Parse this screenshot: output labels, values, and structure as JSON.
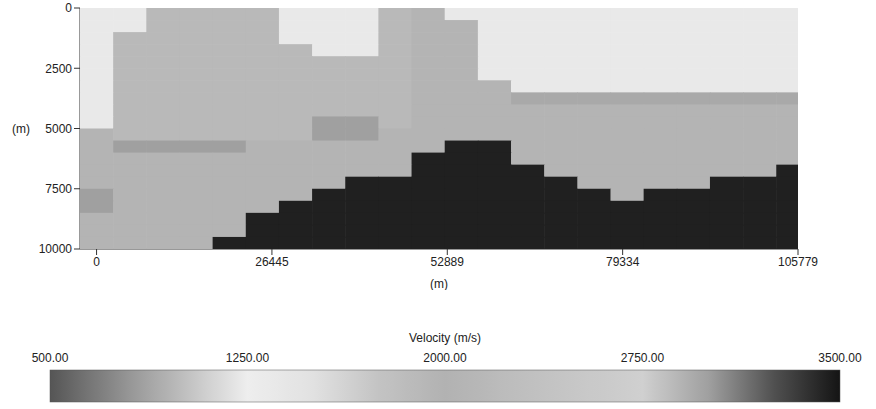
{
  "chart_data": {
    "type": "heatmap",
    "x_label": "(m)",
    "y_label": "(m)",
    "xlim": [
      -2500,
      105779
    ],
    "xticks": [
      0,
      26445,
      52889,
      79334,
      105779
    ],
    "ylim": [
      0,
      10000
    ],
    "yticks": [
      0,
      2500,
      5000,
      7500,
      10000
    ],
    "x": [
      0,
      5000,
      10000,
      15000,
      20000,
      25000,
      30000,
      35000,
      40000,
      45000,
      50000,
      55000,
      60000,
      65000,
      70000,
      75000,
      80000,
      85000,
      90000,
      95000,
      100000,
      105000
    ],
    "y": [
      250,
      750,
      1250,
      1750,
      2250,
      2750,
      3250,
      3750,
      4250,
      4750,
      5250,
      5750,
      6250,
      6750,
      7250,
      7750,
      8250,
      8750,
      9250,
      9750
    ],
    "cells": [
      [
        1350,
        1350,
        1900,
        1900,
        1900,
        1900,
        1350,
        1350,
        1350,
        1900,
        2050,
        1350,
        1350,
        1350,
        1350,
        1350,
        1350,
        1350,
        1350,
        1350,
        1350,
        1350
      ],
      [
        1350,
        1350,
        1900,
        1900,
        1900,
        1900,
        1350,
        1350,
        1350,
        1900,
        2050,
        2050,
        1350,
        1350,
        1350,
        1350,
        1350,
        1350,
        1350,
        1350,
        1350,
        1350
      ],
      [
        1350,
        1900,
        1900,
        1900,
        1900,
        1900,
        1350,
        1350,
        1350,
        1900,
        2050,
        2050,
        1350,
        1350,
        1350,
        1350,
        1350,
        1350,
        1350,
        1350,
        1350,
        1350
      ],
      [
        1350,
        1900,
        1900,
        1900,
        1900,
        1900,
        1900,
        1350,
        1350,
        1900,
        2050,
        2050,
        1350,
        1350,
        1350,
        1350,
        1350,
        1350,
        1350,
        1350,
        1350,
        1350
      ],
      [
        1350,
        1900,
        1900,
        1900,
        1900,
        1900,
        1900,
        1900,
        1900,
        1900,
        2050,
        2050,
        1350,
        1350,
        1350,
        1350,
        1350,
        1350,
        1350,
        1350,
        1350,
        1350
      ],
      [
        1350,
        1900,
        1900,
        1900,
        1900,
        1900,
        1900,
        1900,
        1900,
        1900,
        2050,
        2050,
        1350,
        1350,
        1350,
        1350,
        1350,
        1350,
        1350,
        1350,
        1350,
        1350
      ],
      [
        1350,
        1900,
        1900,
        1900,
        1900,
        1900,
        1900,
        1900,
        1900,
        1900,
        2050,
        2050,
        2050,
        1350,
        1350,
        1350,
        1350,
        1350,
        1350,
        1350,
        1350,
        1350
      ],
      [
        1350,
        1900,
        1900,
        1900,
        1900,
        1900,
        1900,
        1900,
        1900,
        1900,
        2050,
        2050,
        2050,
        2950,
        2950,
        2950,
        2950,
        2950,
        2950,
        2950,
        2950,
        2950
      ],
      [
        1350,
        1900,
        1900,
        1900,
        1900,
        1900,
        1900,
        1900,
        1900,
        1900,
        2050,
        2050,
        2050,
        2050,
        2050,
        2050,
        2050,
        2050,
        2050,
        2050,
        2050,
        2050
      ],
      [
        1350,
        1900,
        1900,
        1900,
        1900,
        1900,
        1900,
        3000,
        3000,
        1900,
        2050,
        2050,
        2050,
        2050,
        2050,
        2050,
        2050,
        2050,
        2050,
        2050,
        2050,
        2050
      ],
      [
        2050,
        1900,
        1900,
        1900,
        1900,
        1900,
        1900,
        3000,
        3000,
        2050,
        2050,
        2050,
        2050,
        2050,
        2050,
        2050,
        2050,
        2050,
        2050,
        2050,
        2050,
        2050
      ],
      [
        2050,
        3000,
        3000,
        3000,
        3000,
        2050,
        2050,
        2050,
        2050,
        2050,
        2050,
        3450,
        3450,
        2050,
        2050,
        2050,
        2050,
        2050,
        2050,
        2050,
        2050,
        2050
      ],
      [
        2050,
        2050,
        2050,
        2050,
        2050,
        2050,
        2050,
        2050,
        2050,
        2050,
        3450,
        3450,
        3450,
        2050,
        2050,
        2050,
        2050,
        2050,
        2050,
        2050,
        2050,
        2050
      ],
      [
        2050,
        2050,
        2050,
        2050,
        2050,
        2050,
        2050,
        2050,
        2050,
        2050,
        3450,
        3450,
        3450,
        3450,
        2050,
        2050,
        2050,
        2050,
        2050,
        2050,
        2050,
        3450
      ],
      [
        2050,
        2050,
        2050,
        2050,
        2050,
        2050,
        2050,
        2050,
        3450,
        3450,
        3450,
        3450,
        3450,
        3450,
        3450,
        2050,
        2050,
        2050,
        2050,
        3450,
        3450,
        3450
      ],
      [
        3000,
        2050,
        2050,
        2050,
        2050,
        2050,
        2050,
        3450,
        3450,
        3450,
        3450,
        3450,
        3450,
        3450,
        3450,
        3450,
        2050,
        3450,
        3450,
        3450,
        3450,
        3450
      ],
      [
        3000,
        2050,
        2050,
        2050,
        2050,
        2050,
        3450,
        3450,
        3450,
        3450,
        3450,
        3450,
        3450,
        3450,
        3450,
        3450,
        3450,
        3450,
        3450,
        3450,
        3450,
        3450
      ],
      [
        2050,
        2050,
        2050,
        2050,
        2050,
        3450,
        3450,
        3450,
        3450,
        3450,
        3450,
        3450,
        3450,
        3450,
        3450,
        3450,
        3450,
        3450,
        3450,
        3450,
        3450,
        3450
      ],
      [
        2050,
        2050,
        2050,
        2050,
        2050,
        3450,
        3450,
        3450,
        3450,
        3450,
        3450,
        3450,
        3450,
        3450,
        3450,
        3450,
        3450,
        3450,
        3450,
        3450,
        3450,
        3450
      ],
      [
        2050,
        2050,
        2050,
        2050,
        3450,
        3450,
        3450,
        3450,
        3450,
        3450,
        3450,
        3450,
        3450,
        3450,
        3450,
        3450,
        3450,
        3450,
        3450,
        3450,
        3450,
        3450
      ]
    ],
    "colorbar": {
      "label": "Velocity (m/s)",
      "range": [
        500,
        3500
      ],
      "ticks": [
        {
          "value": 500,
          "label": "500.00"
        },
        {
          "value": 1250,
          "label": "1250.00"
        },
        {
          "value": 2000,
          "label": "2000.00"
        },
        {
          "value": 2750,
          "label": "2750.00"
        },
        {
          "value": 3500,
          "label": "3500.00"
        }
      ]
    }
  }
}
